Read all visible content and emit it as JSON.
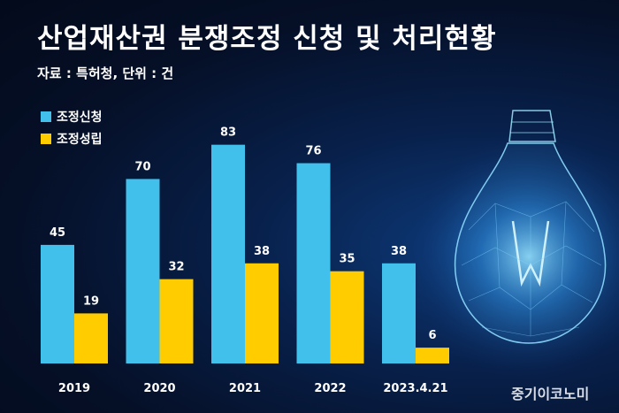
{
  "title": "산업재산권 분쟁조정 신청 및 처리현황",
  "source": "자료 : 특허청, 단위 : 건",
  "watermark": "중기이코노미",
  "colors": {
    "series_1": "#41c0ec",
    "series_2": "#ffcc00"
  },
  "chart_data": {
    "type": "bar",
    "categories": [
      "2019",
      "2020",
      "2021",
      "2022",
      "2023.4.21"
    ],
    "series": [
      {
        "name": "조정신청",
        "values": [
          45,
          70,
          83,
          76,
          38
        ]
      },
      {
        "name": "조정성립",
        "values": [
          19,
          32,
          38,
          35,
          6
        ]
      }
    ],
    "ylim": [
      0,
      100
    ],
    "grid": false,
    "legend": "top-left"
  }
}
